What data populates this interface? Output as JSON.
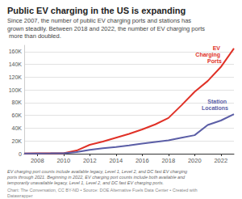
{
  "chart_data": {
    "type": "line",
    "title": "Public EV charging in the US is expanding",
    "subtitle": "Since 2007, the number of public EV charging ports and stations has grown steadily. Between 2018 and 2022, the number of EV charging ports more than doubled.",
    "caption": "EV charging port counts include available legacy, Level 1, Level 2, and DC fast EV charging ports through 2021. Beginning in 2022, EV charging port counts include both available and temporarily unavailable legacy, Level 1, Level 2, and DC fast EV charging ports.",
    "source": "Chart: The Conversation, CC BY-ND • Source: DOE Alternative Fuels Data Center • Created with Datawrapper",
    "x": [
      2007,
      2008,
      2009,
      2010,
      2011,
      2012,
      2013,
      2014,
      2015,
      2016,
      2017,
      2018,
      2019,
      2020,
      2021,
      2022,
      2023
    ],
    "series": [
      {
        "name": "EV Charging Ports",
        "color": "#e03127",
        "values": [
          400,
          500,
          550,
          700,
          5000,
          14000,
          19000,
          25000,
          31000,
          38000,
          46000,
          56000,
          76000,
          97000,
          114000,
          136000,
          165000
        ]
      },
      {
        "name": "Station Locations",
        "color": "#5b5ea6",
        "values": [
          400,
          450,
          500,
          600,
          2500,
          6000,
          8500,
          10500,
          13000,
          16000,
          18500,
          21000,
          25000,
          29000,
          45000,
          52000,
          62000
        ]
      }
    ],
    "xlim": [
      2007,
      2023
    ],
    "xticks": [
      2008,
      2010,
      2012,
      2014,
      2016,
      2018,
      2020,
      2022
    ],
    "ylim": [
      0,
      170000
    ],
    "yticks": [
      0,
      {
        "value": 20000,
        "label": "20K"
      },
      {
        "value": 40000,
        "label": "40K"
      },
      {
        "value": 60000,
        "label": "60K"
      },
      {
        "value": 80000,
        "label": "80K"
      },
      {
        "value": 100000,
        "label": "100K"
      },
      {
        "value": 120000,
        "label": "120K"
      },
      {
        "value": 140000,
        "label": "140K"
      },
      {
        "value": 160000,
        "label": "160K"
      }
    ],
    "grid": true
  }
}
